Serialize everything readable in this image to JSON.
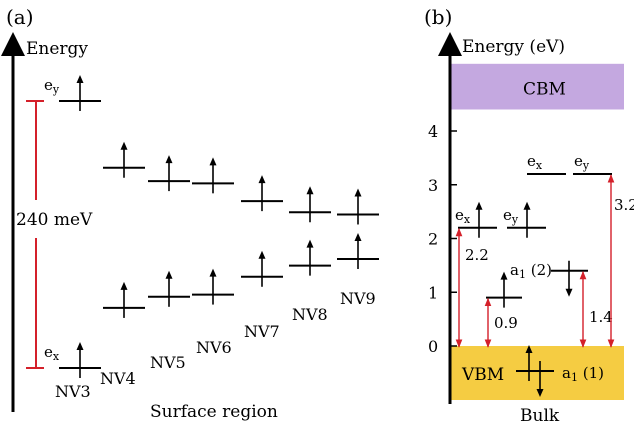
{
  "panel_a": {
    "label": "(a)",
    "axis_label": "Energy",
    "region_label": "Surface region",
    "gap_label": "240 meV",
    "ey_label": "e",
    "ey_sub": "y",
    "ex_label": "e",
    "ex_sub": "x",
    "levels": [
      {
        "name": "NV3",
        "upper": 2.4,
        "lower": 0.0
      },
      {
        "name": "NV4",
        "upper": 1.8,
        "lower": 0.54
      },
      {
        "name": "NV5",
        "upper": 1.68,
        "lower": 0.64
      },
      {
        "name": "NV6",
        "upper": 1.66,
        "lower": 0.66
      },
      {
        "name": "NV7",
        "upper": 1.5,
        "lower": 0.82
      },
      {
        "name": "NV8",
        "upper": 1.4,
        "lower": 0.92
      },
      {
        "name": "NV9",
        "upper": 1.38,
        "lower": 0.98
      }
    ]
  },
  "panel_b": {
    "label": "(b)",
    "axis_label": "Energy (eV)",
    "x_label": "Bulk",
    "cbm_label": "CBM",
    "vbm_label": "VBM",
    "y_ticks": [
      "0",
      "1",
      "2",
      "3",
      "4"
    ],
    "ylim": [
      0,
      5
    ],
    "cbm_range": [
      4.4,
      5.25
    ],
    "levels": {
      "ex_occ": 2.2,
      "ey_occ": 2.2,
      "ex_empty": 3.2,
      "ey_empty": 3.2,
      "a1_2": 1.4,
      "a1_2_lower": 0.9,
      "a1_1": 0.0
    },
    "level_labels": {
      "ex": "e",
      "ex_sub": "x",
      "ey": "e",
      "ey_sub": "y",
      "a1_2_main": "a",
      "a1_2_sub": "1",
      "a1_2_tail": " (2)",
      "a1_1_main": "a",
      "a1_1_sub": "1",
      "a1_1_tail": " (1)"
    },
    "transitions": [
      {
        "label": "2.2",
        "value": 2.2
      },
      {
        "label": "0.9",
        "value": 0.9
      },
      {
        "label": "1.4",
        "value": 1.4
      },
      {
        "label": "3.2",
        "value": 3.2
      }
    ]
  },
  "colors": {
    "cbm": "#c4a8e0",
    "vbm": "#f5cc42",
    "gap_bar": "#d4202a",
    "transition": "#d4202a"
  }
}
